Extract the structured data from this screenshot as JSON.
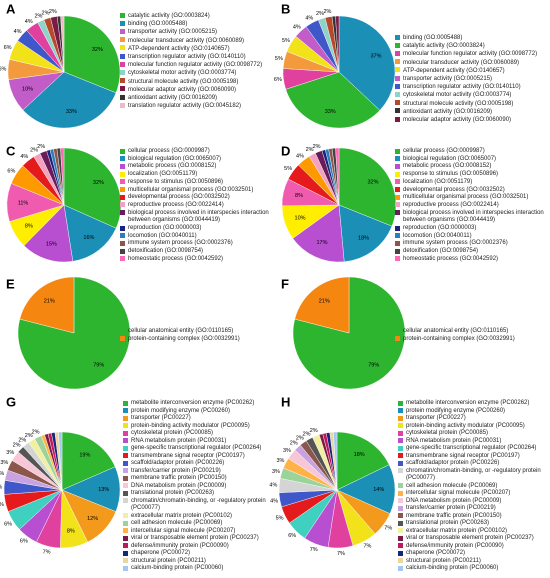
{
  "chart_data": [
    {
      "type": "pie",
      "panel": "A",
      "categories": [
        "catalytic activity (GO:0003824)",
        "binding (GO:0005488)",
        "transporter activity (GO:0005215)",
        "molecular transducer activity (GO:0060089)",
        "ATP-dependent activity (GO:0140657)",
        "transcription regulator activity (GO:0140110)",
        "molecular function regulator activity (GO:0098772)",
        "cytoskeletal motor activity (GO:0003774)",
        "structural molecule activity (GO:0005198)",
        "molecular adaptor activity (GO:0060090)",
        "antioxidant activity (GO:0016209)",
        "translation regulator activity (GO:0045182)"
      ],
      "values": [
        32,
        33,
        10,
        6,
        6,
        4,
        4,
        2,
        2,
        2,
        1,
        1
      ],
      "value_labels": [
        "32%",
        "33%",
        "10%",
        "6%",
        "6%",
        "4%",
        "4%",
        "2%",
        "2%",
        "2%",
        null,
        null
      ],
      "colors": [
        "#2db52f",
        "#1b8fb5",
        "#c15cc9",
        "#f39a3c",
        "#f2e21a",
        "#3f57c8",
        "#e0409e",
        "#8fd3c8",
        "#b5492a",
        "#7a1a45",
        "#333333",
        "#f2b8c6"
      ]
    },
    {
      "type": "pie",
      "panel": "B",
      "categories": [
        "binding (GO:0005488)",
        "catalytic activity (GO:0003824)",
        "molecular function regulator activity (GO:0098772)",
        "molecular transducer activity (GO:0060089)",
        "ATP-dependent activity (GO:0140657)",
        "transporter activity (GO:0005215)",
        "transcription regulator activity (GO:0140110)",
        "cytoskeletal motor activity (GO:0003774)",
        "structural molecule activity (GO:0005198)",
        "antioxidant activity (GO:0016209)",
        "molecular adaptor activity (GO:0060090)"
      ],
      "values": [
        37,
        33,
        6,
        5,
        5,
        4,
        4,
        2,
        2,
        1,
        1
      ],
      "value_labels": [
        "37%",
        "33%",
        "6%",
        "5%",
        "5%",
        "4%",
        "4%",
        "2%",
        "2%",
        null,
        null
      ],
      "colors": [
        "#1b8fb5",
        "#2db52f",
        "#e0409e",
        "#f39a3c",
        "#f2e21a",
        "#c15cc9",
        "#3f57c8",
        "#8fd3c8",
        "#b5492a",
        "#333333",
        "#7a1a45"
      ]
    },
    {
      "type": "pie",
      "panel": "C",
      "categories": [
        "cellular process (GO:0009987)",
        "biological regulation (GO:0065007)",
        "metabolic process (GO:0008152)",
        "localization (GO:0051179)",
        "response to stimulus (GO:0050896)",
        "multicellular organismal process (GO:0032501)",
        "developmental process (GO:0032502)",
        "reproductive process (GO:0022414)",
        "biological process involved in interspecies interaction between organisms (GO:0044419)",
        "reproduction (GO:0000003)",
        "locomotion (GO:0040011)",
        "immune system process (GO:0002376)",
        "detoxification (GO:0098754)",
        "homeostatic process (GO:0042592)"
      ],
      "values": [
        32,
        16,
        15,
        8,
        11,
        6,
        4,
        2,
        2,
        1,
        1,
        1,
        1,
        1
      ],
      "value_labels": [
        "32%",
        "16%",
        "15%",
        "8%",
        "11%",
        "6%",
        "4%",
        "2%",
        "2%",
        null,
        null,
        null,
        null,
        null
      ],
      "colors": [
        "#2db52f",
        "#1b8fb5",
        "#b84fd0",
        "#ffee00",
        "#f05bb0",
        "#ff9900",
        "#e41a1c",
        "#f4a0c0",
        "#6a1b5a",
        "#1a237e",
        "#2c7fb8",
        "#8c564b",
        "#444444",
        "#ff69b4"
      ]
    },
    {
      "type": "pie",
      "panel": "D",
      "categories": [
        "cellular process (GO:0009987)",
        "biological regulation (GO:0065007)",
        "metabolic process (GO:0008152)",
        "response to stimulus (GO:0050896)",
        "localization (GO:0051179)",
        "developmental process (GO:0032502)",
        "multicellular organismal process (GO:0032501)",
        "reproductive process (GO:0022414)",
        "biological process involved in interspecies interaction between organisms (GO:0044419)",
        "reproduction (GO:0000003)",
        "locomotion (GO:0040011)",
        "immune system process (GO:0002376)",
        "detoxification (GO:0098754)",
        "homeostatic process (GO:0042592)"
      ],
      "values": [
        32,
        18,
        17,
        10,
        8,
        5,
        4,
        2,
        2,
        1,
        1,
        1,
        1,
        1
      ],
      "value_labels": [
        "32%",
        "18%",
        "17%",
        "10%",
        "8%",
        "5%",
        "4%",
        "2%",
        "2%",
        null,
        null,
        null,
        null,
        null
      ],
      "colors": [
        "#2db52f",
        "#1b8fb5",
        "#b84fd0",
        "#ffee00",
        "#f05bb0",
        "#e41a1c",
        "#ff9900",
        "#f4a0c0",
        "#6a1b5a",
        "#1a237e",
        "#2c7fb8",
        "#8c564b",
        "#444444",
        "#ff69b4"
      ]
    },
    {
      "type": "pie",
      "panel": "E",
      "categories": [
        "cellular anatomical entity (GO:0110165)",
        "protein-containing complex (GO:0032991)"
      ],
      "values": [
        79,
        21
      ],
      "value_labels": [
        "79%",
        "21%"
      ],
      "colors": [
        "#2db52f",
        "#f5860f"
      ]
    },
    {
      "type": "pie",
      "panel": "F",
      "categories": [
        "cellular anatomical entity (GO:0110165)",
        "protein-containing complex (GO:0032991)"
      ],
      "values": [
        79,
        21
      ],
      "value_labels": [
        "79%",
        "21%"
      ],
      "colors": [
        "#2db52f",
        "#f5860f"
      ]
    },
    {
      "type": "pie",
      "panel": "G",
      "categories": [
        "metabolite interconversion enzyme (PC00262)",
        "protein modifying enzyme (PC00260)",
        "transporter (PC00227)",
        "protein-binding activity modulator (PC00095)",
        "cytoskeletal protein (PC00085)",
        "RNA metabolism protein (PC00031)",
        "gene-specific transcriptional regulator (PC00264)",
        "transmembrane signal receptor (PC00197)",
        "scaffold/adaptor protein (PC00226)",
        "transfer/carrier protein (PC00219)",
        "membrane traffic protein (PC00150)",
        "DNA metabolism protein (PC00009)",
        "translational protein (PC00263)",
        "chromatin/chromatin-binding, or -regulatory protein (PC00077)",
        "extracellular matrix protein (PC00102)",
        "cell adhesion molecule (PC00069)",
        "intercellular signal molecule (PC00207)",
        "viral or transposable element protein (PC00237)",
        "defense/immunity protein (PC00090)",
        "chaperone (PC00072)",
        "structural protein (PC00211)",
        "calcium-binding protein (PC00060)"
      ],
      "values": [
        19,
        13,
        12,
        8,
        7,
        6,
        6,
        5,
        4,
        3,
        3,
        3,
        2,
        2,
        2,
        2,
        1,
        1,
        1,
        1,
        1,
        1
      ],
      "value_labels": [
        "19%",
        "13%",
        "12%",
        "8%",
        "7%",
        "6%",
        "6%",
        "5%",
        "4%",
        "3%",
        "3%",
        "3%",
        "2%",
        "2%",
        "2%",
        "2%",
        null,
        null,
        null,
        null,
        null,
        null
      ],
      "colors": [
        "#2db52f",
        "#1b8fb5",
        "#f39a1c",
        "#f2e21a",
        "#e0409e",
        "#b84fd0",
        "#3fd0c0",
        "#e41a1c",
        "#3f57c8",
        "#c8a2e0",
        "#8c564b",
        "#f7c7d8",
        "#555555",
        "#d4d4d4",
        "#f0f0a0",
        "#9bd39b",
        "#ffb347",
        "#7a1a45",
        "#c2185b",
        "#1a237e",
        "#e8d8a0",
        "#a0c8f0"
      ]
    },
    {
      "type": "pie",
      "panel": "H",
      "categories": [
        "metabolite interconversion enzyme (PC00262)",
        "protein modifying enzyme (PC00260)",
        "transporter (PC00227)",
        "protein-binding activity modulator (PC00095)",
        "cytoskeletal protein (PC00085)",
        "RNA metabolism protein (PC00031)",
        "gene-specific transcriptional regulator (PC00264)",
        "transmembrane signal receptor (PC00197)",
        "scaffold/adaptor protein (PC00226)",
        "chromatin/chromatin-binding, or -regulatory protein (PC00077)",
        "cell adhesion molecule (PC00069)",
        "intercellular signal molecule (PC00207)",
        "DNA metabolism protein (PC00009)",
        "transfer/carrier protein (PC00219)",
        "membrane traffic protein (PC00150)",
        "translational protein (PC00263)",
        "extracellular matrix protein (PC00102)",
        "viral or transposable element protein (PC00237)",
        "defense/immunity protein (PC00090)",
        "chaperone (PC00072)",
        "structural protein (PC00211)",
        "calcium-binding protein (PC00060)"
      ],
      "values": [
        18,
        14,
        7,
        7,
        7,
        7,
        6,
        5,
        4,
        4,
        3,
        3,
        3,
        2,
        2,
        2,
        2,
        1,
        1,
        1,
        1,
        1
      ],
      "value_labels": [
        "18%",
        "14%",
        "7%",
        "7%",
        "7%",
        "7%",
        "6%",
        "5%",
        "4%",
        "4%",
        "3%",
        "3%",
        "3%",
        "2%",
        "2%",
        "2%",
        "2%",
        null,
        null,
        null,
        null,
        null
      ],
      "colors": [
        "#2db52f",
        "#1b8fb5",
        "#f39a1c",
        "#f2e21a",
        "#e0409e",
        "#b84fd0",
        "#3fd0c0",
        "#e41a1c",
        "#3f57c8",
        "#d4d4d4",
        "#9bd39b",
        "#ffb347",
        "#f7c7d8",
        "#c8a2e0",
        "#8c564b",
        "#555555",
        "#f0f0a0",
        "#7a1a45",
        "#c2185b",
        "#1a237e",
        "#e8d8a0",
        "#a0c8f0"
      ]
    }
  ]
}
